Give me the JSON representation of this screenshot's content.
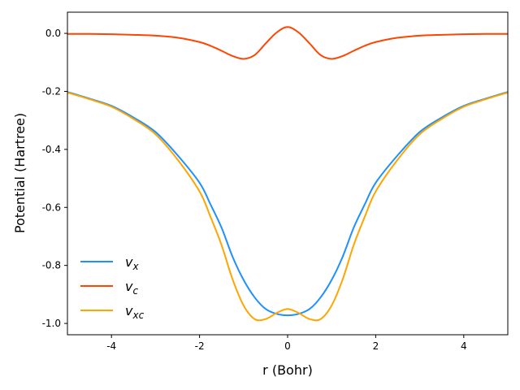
{
  "chart_data": {
    "type": "line",
    "title": "",
    "xlabel": "r (Bohr)",
    "ylabel": "Potential (Hartree)",
    "xlim": [
      -5,
      5
    ],
    "ylim": [
      -1.039,
      0.073
    ],
    "xticks": [
      -4,
      -2,
      0,
      2,
      4
    ],
    "xtick_labels": [
      "-4",
      "-2",
      "0",
      "2",
      "4"
    ],
    "yticks": [
      0.0,
      -0.2,
      -0.4,
      -0.6,
      -0.8,
      -1.0
    ],
    "ytick_labels": [
      "0.0",
      "-0.2",
      "-0.4",
      "-0.6",
      "-0.8",
      "-1.0"
    ],
    "grid": false,
    "legend_position": "lower-left",
    "x": [
      -5,
      -4.5,
      -4,
      -3.5,
      -3,
      -2.5,
      -2,
      -1.75,
      -1.5,
      -1.25,
      -1,
      -0.75,
      -0.5,
      -0.25,
      0,
      0.25,
      0.5,
      0.75,
      1,
      1.25,
      1.5,
      1.75,
      2,
      2.5,
      3,
      3.5,
      4,
      4.5,
      5
    ],
    "series": [
      {
        "name": "v_x",
        "color": "#1E90FF",
        "values": [
          -0.202,
          -0.225,
          -0.25,
          -0.29,
          -0.34,
          -0.42,
          -0.515,
          -0.59,
          -0.67,
          -0.77,
          -0.85,
          -0.91,
          -0.95,
          -0.967,
          -0.972,
          -0.967,
          -0.95,
          -0.91,
          -0.85,
          -0.77,
          -0.67,
          -0.59,
          -0.515,
          -0.42,
          -0.34,
          -0.29,
          -0.25,
          -0.225,
          -0.202
        ]
      },
      {
        "name": "v_c",
        "color": "#FF4500",
        "values": [
          -0.002,
          -0.002,
          -0.003,
          -0.005,
          -0.008,
          -0.015,
          -0.03,
          -0.043,
          -0.06,
          -0.078,
          -0.088,
          -0.075,
          -0.035,
          0.003,
          0.022,
          0.003,
          -0.035,
          -0.075,
          -0.088,
          -0.078,
          -0.06,
          -0.043,
          -0.03,
          -0.015,
          -0.008,
          -0.005,
          -0.003,
          -0.002,
          -0.002
        ]
      },
      {
        "name": "v_xc",
        "color": "#FFA500",
        "values": [
          -0.204,
          -0.227,
          -0.253,
          -0.295,
          -0.348,
          -0.435,
          -0.545,
          -0.633,
          -0.73,
          -0.848,
          -0.938,
          -0.985,
          -0.985,
          -0.964,
          -0.95,
          -0.964,
          -0.985,
          -0.985,
          -0.938,
          -0.848,
          -0.73,
          -0.633,
          -0.545,
          -0.435,
          -0.348,
          -0.295,
          -0.253,
          -0.227,
          -0.204
        ]
      }
    ]
  }
}
